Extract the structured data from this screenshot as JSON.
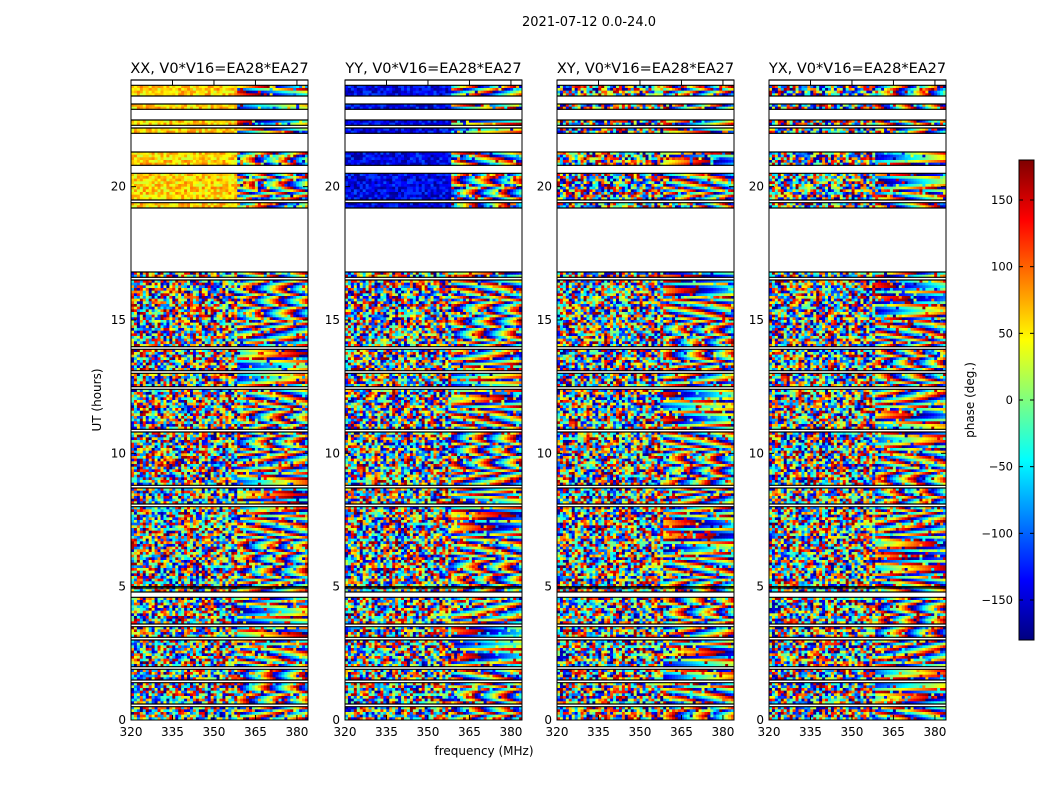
{
  "suptitle": "2021-07-12 0.0-24.0",
  "chart_data": {
    "type": "heatmap",
    "xlabel": "frequency (MHz)",
    "ylabel": "UT (hours)",
    "xlim": [
      320,
      384
    ],
    "ylim": [
      0,
      24
    ],
    "xticks": [
      320,
      335,
      350,
      365,
      380
    ],
    "yticks": [
      0,
      5,
      10,
      15,
      20
    ],
    "colorbar": {
      "label": "phase (deg.)",
      "range": [
        -180,
        180
      ],
      "ticks": [
        -150,
        -100,
        -50,
        0,
        50,
        100,
        150
      ],
      "tick_labels": [
        "−150",
        "−100",
        "−50",
        "0",
        "50",
        "100",
        "150"
      ],
      "colors": [
        "#00007f",
        "#0000ff",
        "#007fff",
        "#00ffff",
        "#7fff7f",
        "#ffff00",
        "#ff7f00",
        "#ff0000",
        "#7f0000"
      ]
    },
    "panels": [
      {
        "title": "XX, V0*V16=EA28*EA27",
        "base_phase": 60,
        "late_bias": 40
      },
      {
        "title": "YY, V0*V16=EA28*EA27",
        "base_phase": -140,
        "late_bias": 40
      },
      {
        "title": "XY, V0*V16=EA28*EA27",
        "base_phase": null,
        "late_bias": 0
      },
      {
        "title": "YX, V0*V16=EA28*EA27",
        "base_phase": null,
        "late_bias": 0
      }
    ],
    "blank_ut_ranges": [
      [
        0.5,
        0.6
      ],
      [
        1.4,
        1.5
      ],
      [
        1.9,
        2.0
      ],
      [
        3.0,
        3.1
      ],
      [
        3.5,
        3.6
      ],
      [
        4.6,
        4.8
      ],
      [
        4.95,
        5.0
      ],
      [
        8.0,
        8.1
      ],
      [
        8.7,
        8.8
      ],
      [
        10.8,
        10.9
      ],
      [
        12.4,
        12.5
      ],
      [
        13.0,
        13.1
      ],
      [
        13.9,
        14.0
      ],
      [
        16.5,
        16.6
      ],
      [
        16.8,
        19.2
      ],
      [
        19.4,
        19.5
      ],
      [
        20.5,
        20.8
      ],
      [
        21.3,
        22.0
      ],
      [
        22.2,
        22.3
      ],
      [
        22.5,
        22.9
      ],
      [
        23.1,
        23.4
      ],
      [
        23.8,
        24.0
      ]
    ]
  }
}
